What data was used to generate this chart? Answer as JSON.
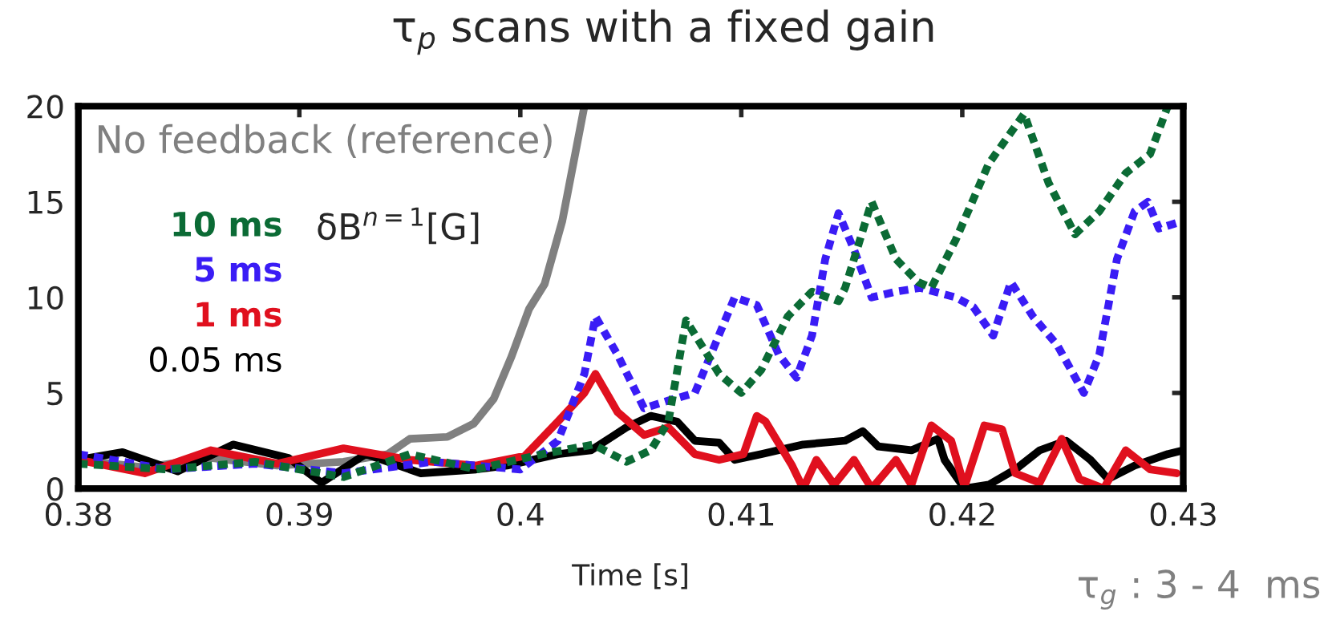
{
  "chart_data": {
    "type": "line",
    "title": "τ$_{p}$ scans with a fixed gain",
    "xlabel": "Time [s]",
    "ylabel": "δB$^{n=1}$[G]",
    "annotations": [
      "τ$_{g}$ : 3 - 4  ms"
    ],
    "xlim": [
      0.38,
      0.43
    ],
    "ylim": [
      0,
      20
    ],
    "xticks": [
      0.38,
      0.39,
      0.4,
      0.41,
      0.42,
      0.43
    ],
    "yticks": [
      0,
      5,
      10,
      15,
      20
    ],
    "grid": false,
    "legend": false,
    "marker": "none",
    "series": [
      {
        "name": "No feedback (reference)",
        "color": "#808080",
        "line_style": "solid",
        "x": [
          0.38,
          0.383,
          0.386,
          0.389,
          0.392,
          0.394,
          0.395,
          0.3967,
          0.3979,
          0.3988,
          0.3996,
          0.4004,
          0.4011,
          0.4019,
          0.4025,
          0.4029
        ],
        "values": [
          1.5,
          1.1,
          1.6,
          1.2,
          1.4,
          1.8,
          2.6,
          2.7,
          3.4,
          4.7,
          6.9,
          9.4,
          10.7,
          14,
          17.6,
          20
        ]
      },
      {
        "name": "10 ms",
        "color": "#0b6b35",
        "line_style": "dotted",
        "x": [
          0.38,
          0.384,
          0.388,
          0.392,
          0.395,
          0.398,
          0.401,
          0.4033,
          0.4048,
          0.4059,
          0.4067,
          0.4075,
          0.409,
          0.41,
          0.4109,
          0.4121,
          0.4132,
          0.4144,
          0.4147,
          0.4159,
          0.417,
          0.418,
          0.4186,
          0.4197,
          0.4212,
          0.4228,
          0.4239,
          0.4251,
          0.4262,
          0.4274,
          0.4285,
          0.4293
        ],
        "values": [
          1.3,
          1.0,
          1.4,
          0.6,
          1.8,
          1.0,
          1.8,
          2.3,
          1.4,
          2.0,
          3.5,
          8.8,
          6,
          5.0,
          6.2,
          9,
          10.3,
          9.8,
          10.5,
          15.0,
          12,
          10.8,
          10.5,
          13,
          17,
          19.6,
          16,
          13.3,
          14.5,
          16.5,
          17.5,
          20
        ]
      },
      {
        "name": "5 ms",
        "color": "#3a1cf5",
        "line_style": "dotted",
        "x": [
          0.38,
          0.384,
          0.388,
          0.392,
          0.396,
          0.4,
          0.4017,
          0.4029,
          0.4034,
          0.4044,
          0.4056,
          0.4067,
          0.4079,
          0.4088,
          0.4097,
          0.4107,
          0.4117,
          0.4125,
          0.4132,
          0.4138,
          0.4144,
          0.4151,
          0.4159,
          0.417,
          0.4181,
          0.4197,
          0.4205,
          0.4214,
          0.4222,
          0.4232,
          0.4243,
          0.4255,
          0.4262,
          0.427,
          0.4278,
          0.4284,
          0.4289,
          0.43
        ],
        "values": [
          1.8,
          1.0,
          1.3,
          0.8,
          1.4,
          1.0,
          2.5,
          6,
          9.0,
          7,
          4.2,
          4.6,
          5.0,
          7.5,
          10.0,
          9.6,
          7,
          5.8,
          8,
          12,
          14.4,
          12.5,
          10,
          10.3,
          10.5,
          10.0,
          9.5,
          8.0,
          10.8,
          9,
          7.5,
          5.0,
          7,
          12,
          14.5,
          15.0,
          13.6,
          14.0
        ]
      },
      {
        "name": "1 ms",
        "color": "#e0101e",
        "line_style": "solid",
        "x": [
          0.38,
          0.383,
          0.386,
          0.389,
          0.392,
          0.395,
          0.398,
          0.4002,
          0.4017,
          0.4029,
          0.4034,
          0.4044,
          0.4056,
          0.4067,
          0.4079,
          0.409,
          0.4101,
          0.4107,
          0.4111,
          0.4123,
          0.4128,
          0.4134,
          0.4142,
          0.4151,
          0.4159,
          0.417,
          0.4177,
          0.4186,
          0.4195,
          0.4201,
          0.421,
          0.4218,
          0.4224,
          0.4235,
          0.4245,
          0.4253,
          0.4264,
          0.4274,
          0.4285,
          0.4297
        ],
        "values": [
          1.5,
          0.8,
          2.0,
          1.3,
          2.1,
          1.5,
          1.2,
          1.7,
          3.5,
          5.0,
          6.0,
          4.0,
          2.8,
          3.2,
          1.8,
          1.5,
          1.8,
          3.8,
          3.5,
          1.2,
          0,
          1.5,
          0.2,
          1.5,
          0,
          1.5,
          0.2,
          3.3,
          2.5,
          0.1,
          3.3,
          3.1,
          0.8,
          0.3,
          2.6,
          0.5,
          0,
          2.0,
          1.0,
          0.8
        ]
      },
      {
        "name": "0.05 ms",
        "color": "#000000",
        "line_style": "solid",
        "x": [
          0.38,
          0.382,
          0.3845,
          0.387,
          0.3895,
          0.391,
          0.393,
          0.3955,
          0.398,
          0.3994,
          0.4017,
          0.4032,
          0.4048,
          0.4059,
          0.4071,
          0.4079,
          0.409,
          0.4097,
          0.4109,
          0.4128,
          0.4147,
          0.4155,
          0.4162,
          0.4177,
          0.4189,
          0.4192,
          0.4201,
          0.4212,
          0.4224,
          0.4235,
          0.4247,
          0.4258,
          0.4266,
          0.4278,
          0.4293,
          0.43
        ],
        "values": [
          1.5,
          1.9,
          0.9,
          2.3,
          1.6,
          0.3,
          1.8,
          0.8,
          1.0,
          1.2,
          1.8,
          2.0,
          3.2,
          3.8,
          3.5,
          2.5,
          2.4,
          1.5,
          1.8,
          2.3,
          2.5,
          3.0,
          2.2,
          2.0,
          2.6,
          1.5,
          0,
          0.2,
          1.0,
          2.0,
          2.5,
          1.5,
          0.5,
          1.2,
          1.8,
          2.0
        ]
      }
    ]
  }
}
